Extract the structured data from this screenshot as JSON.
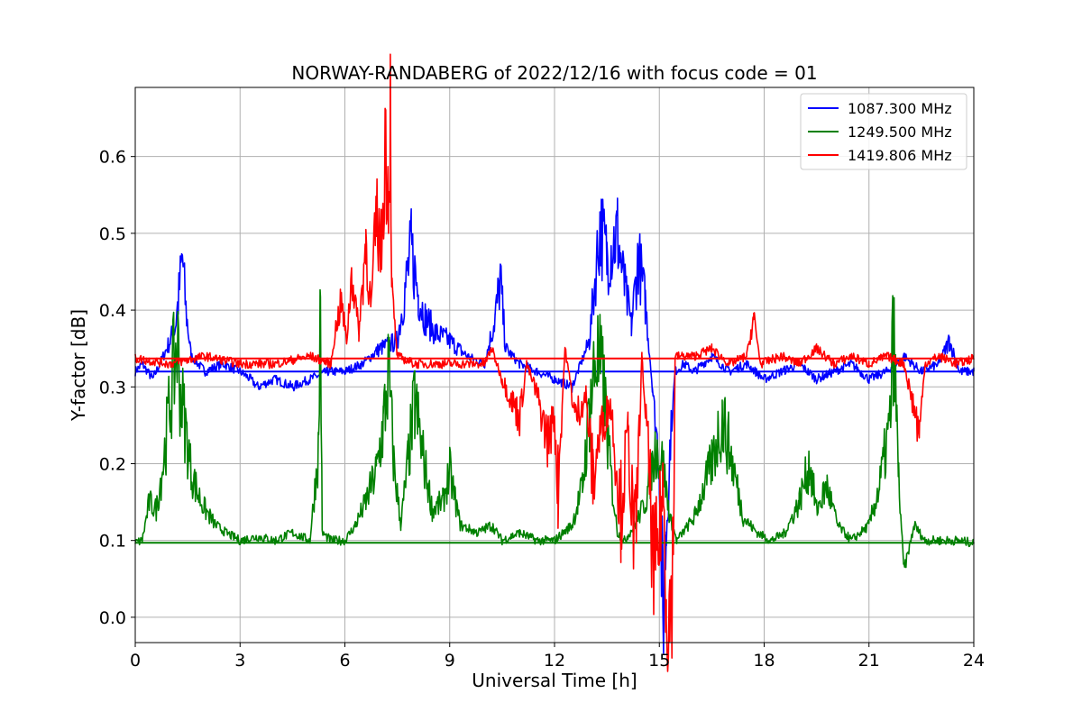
{
  "chart_data": {
    "type": "line",
    "title": "NORWAY-RANDABERG of 2022/12/16 with focus code = 01",
    "xlabel": "Universal Time [h]",
    "ylabel": "Y-factor [dB]",
    "xlim": [
      0,
      24
    ],
    "ylim": [
      -0.033,
      0.69
    ],
    "xticks": [
      0,
      3,
      6,
      9,
      12,
      15,
      18,
      21,
      24
    ],
    "yticks": [
      0.0,
      0.1,
      0.2,
      0.3,
      0.4,
      0.5,
      0.6
    ],
    "ytick_labels": [
      "0.0",
      "0.1",
      "0.2",
      "0.3",
      "0.4",
      "0.5",
      "0.6"
    ],
    "grid": true,
    "legend_position": "top-right",
    "series": [
      {
        "name": "1087.300 MHz",
        "color": "#0000ff",
        "baseline": 0.32,
        "points": [
          [
            0.0,
            0.32
          ],
          [
            0.2,
            0.33
          ],
          [
            0.5,
            0.31
          ],
          [
            0.8,
            0.34
          ],
          [
            1.0,
            0.36
          ],
          [
            1.15,
            0.38
          ],
          [
            1.25,
            0.42
          ],
          [
            1.35,
            0.47
          ],
          [
            1.45,
            0.4
          ],
          [
            1.6,
            0.34
          ],
          [
            2.0,
            0.32
          ],
          [
            2.5,
            0.33
          ],
          [
            3.0,
            0.32
          ],
          [
            3.3,
            0.31
          ],
          [
            3.5,
            0.3
          ],
          [
            4.0,
            0.31
          ],
          [
            4.5,
            0.3
          ],
          [
            5.0,
            0.31
          ],
          [
            5.5,
            0.32
          ],
          [
            6.0,
            0.32
          ],
          [
            6.5,
            0.33
          ],
          [
            7.0,
            0.35
          ],
          [
            7.5,
            0.36
          ],
          [
            7.8,
            0.45
          ],
          [
            7.9,
            0.48
          ],
          [
            8.1,
            0.42
          ],
          [
            8.3,
            0.39
          ],
          [
            8.6,
            0.37
          ],
          [
            9.0,
            0.36
          ],
          [
            9.5,
            0.34
          ],
          [
            10.0,
            0.33
          ],
          [
            10.3,
            0.39
          ],
          [
            10.45,
            0.44
          ],
          [
            10.6,
            0.35
          ],
          [
            11.0,
            0.33
          ],
          [
            11.5,
            0.32
          ],
          [
            12.0,
            0.31
          ],
          [
            12.5,
            0.3
          ],
          [
            13.0,
            0.36
          ],
          [
            13.3,
            0.51
          ],
          [
            13.5,
            0.47
          ],
          [
            13.8,
            0.5
          ],
          [
            14.0,
            0.43
          ],
          [
            14.2,
            0.38
          ],
          [
            14.4,
            0.47
          ],
          [
            14.6,
            0.41
          ],
          [
            14.8,
            0.3
          ],
          [
            15.0,
            0.2
          ],
          [
            15.1,
            0.0
          ],
          [
            15.2,
            0.12
          ],
          [
            15.3,
            0.22
          ],
          [
            15.45,
            0.32
          ],
          [
            15.7,
            0.33
          ],
          [
            16.0,
            0.32
          ],
          [
            16.5,
            0.34
          ],
          [
            17.0,
            0.32
          ],
          [
            17.5,
            0.33
          ],
          [
            18.0,
            0.31
          ],
          [
            18.5,
            0.32
          ],
          [
            19.0,
            0.33
          ],
          [
            19.5,
            0.31
          ],
          [
            20.0,
            0.32
          ],
          [
            20.5,
            0.33
          ],
          [
            21.0,
            0.31
          ],
          [
            21.5,
            0.32
          ],
          [
            22.0,
            0.34
          ],
          [
            22.5,
            0.32
          ],
          [
            23.0,
            0.33
          ],
          [
            23.3,
            0.36
          ],
          [
            23.6,
            0.32
          ],
          [
            24.0,
            0.32
          ]
        ]
      },
      {
        "name": "1249.500 MHz",
        "color": "#008000",
        "baseline": 0.097,
        "points": [
          [
            0.0,
            0.097
          ],
          [
            0.2,
            0.1
          ],
          [
            0.4,
            0.15
          ],
          [
            0.6,
            0.14
          ],
          [
            0.8,
            0.2
          ],
          [
            1.0,
            0.28
          ],
          [
            1.1,
            0.32
          ],
          [
            1.2,
            0.36
          ],
          [
            1.3,
            0.29
          ],
          [
            1.4,
            0.26
          ],
          [
            1.6,
            0.19
          ],
          [
            1.8,
            0.16
          ],
          [
            2.0,
            0.14
          ],
          [
            2.3,
            0.12
          ],
          [
            2.6,
            0.11
          ],
          [
            3.0,
            0.1
          ],
          [
            3.5,
            0.105
          ],
          [
            4.0,
            0.1
          ],
          [
            4.5,
            0.11
          ],
          [
            5.0,
            0.1
          ],
          [
            5.25,
            0.22
          ],
          [
            5.3,
            0.43
          ],
          [
            5.35,
            0.11
          ],
          [
            5.6,
            0.1
          ],
          [
            6.0,
            0.1
          ],
          [
            6.3,
            0.12
          ],
          [
            6.6,
            0.15
          ],
          [
            6.9,
            0.19
          ],
          [
            7.1,
            0.25
          ],
          [
            7.25,
            0.32
          ],
          [
            7.4,
            0.2
          ],
          [
            7.6,
            0.12
          ],
          [
            7.8,
            0.2
          ],
          [
            8.0,
            0.28
          ],
          [
            8.2,
            0.22
          ],
          [
            8.5,
            0.14
          ],
          [
            8.8,
            0.15
          ],
          [
            9.0,
            0.19
          ],
          [
            9.3,
            0.12
          ],
          [
            9.8,
            0.11
          ],
          [
            10.2,
            0.12
          ],
          [
            10.5,
            0.1
          ],
          [
            11.0,
            0.11
          ],
          [
            11.5,
            0.1
          ],
          [
            12.0,
            0.1
          ],
          [
            12.5,
            0.12
          ],
          [
            12.8,
            0.17
          ],
          [
            13.0,
            0.27
          ],
          [
            13.2,
            0.34
          ],
          [
            13.4,
            0.3
          ],
          [
            13.6,
            0.19
          ],
          [
            13.8,
            0.11
          ],
          [
            14.0,
            0.1
          ],
          [
            14.3,
            0.12
          ],
          [
            14.6,
            0.15
          ],
          [
            14.9,
            0.22
          ],
          [
            15.1,
            0.2
          ],
          [
            15.3,
            0.13
          ],
          [
            15.5,
            0.1
          ],
          [
            16.0,
            0.13
          ],
          [
            16.5,
            0.2
          ],
          [
            16.8,
            0.26
          ],
          [
            17.1,
            0.2
          ],
          [
            17.4,
            0.13
          ],
          [
            17.8,
            0.11
          ],
          [
            18.2,
            0.1
          ],
          [
            18.6,
            0.11
          ],
          [
            19.0,
            0.15
          ],
          [
            19.3,
            0.2
          ],
          [
            19.5,
            0.14
          ],
          [
            19.8,
            0.17
          ],
          [
            20.1,
            0.12
          ],
          [
            20.5,
            0.1
          ],
          [
            21.0,
            0.12
          ],
          [
            21.3,
            0.17
          ],
          [
            21.6,
            0.25
          ],
          [
            21.7,
            0.37
          ],
          [
            21.85,
            0.18
          ],
          [
            22.0,
            0.06
          ],
          [
            22.3,
            0.12
          ],
          [
            22.6,
            0.1
          ],
          [
            23.0,
            0.1
          ],
          [
            23.5,
            0.1
          ],
          [
            24.0,
            0.097
          ]
        ]
      },
      {
        "name": "1419.806 MHz",
        "color": "#ff0000",
        "baseline": 0.337,
        "points": [
          [
            0.0,
            0.337
          ],
          [
            1.0,
            0.33
          ],
          [
            2.0,
            0.34
          ],
          [
            3.0,
            0.33
          ],
          [
            4.0,
            0.33
          ],
          [
            5.0,
            0.34
          ],
          [
            5.6,
            0.33
          ],
          [
            5.75,
            0.38
          ],
          [
            5.9,
            0.41
          ],
          [
            6.05,
            0.36
          ],
          [
            6.2,
            0.45
          ],
          [
            6.4,
            0.37
          ],
          [
            6.6,
            0.49
          ],
          [
            6.75,
            0.4
          ],
          [
            6.9,
            0.52
          ],
          [
            7.05,
            0.48
          ],
          [
            7.15,
            0.63
          ],
          [
            7.25,
            0.55
          ],
          [
            7.3,
            0.66
          ],
          [
            7.35,
            0.42
          ],
          [
            7.5,
            0.34
          ],
          [
            8.0,
            0.33
          ],
          [
            9.0,
            0.33
          ],
          [
            10.0,
            0.33
          ],
          [
            10.2,
            0.35
          ],
          [
            10.5,
            0.31
          ],
          [
            10.8,
            0.28
          ],
          [
            11.0,
            0.26
          ],
          [
            11.2,
            0.33
          ],
          [
            11.5,
            0.29
          ],
          [
            11.8,
            0.23
          ],
          [
            12.0,
            0.26
          ],
          [
            12.1,
            0.17
          ],
          [
            12.3,
            0.35
          ],
          [
            12.6,
            0.26
          ],
          [
            12.9,
            0.29
          ],
          [
            13.1,
            0.18
          ],
          [
            13.3,
            0.24
          ],
          [
            13.6,
            0.28
          ],
          [
            13.9,
            0.14
          ],
          [
            14.1,
            0.24
          ],
          [
            14.3,
            0.08
          ],
          [
            14.5,
            0.34
          ],
          [
            14.7,
            0.2
          ],
          [
            14.85,
            0.04
          ],
          [
            15.0,
            0.1
          ],
          [
            15.1,
            0.18
          ],
          [
            15.2,
            0.04
          ],
          [
            15.3,
            0.0
          ],
          [
            15.4,
            0.08
          ],
          [
            15.45,
            0.34
          ],
          [
            16.0,
            0.34
          ],
          [
            16.5,
            0.35
          ],
          [
            17.0,
            0.33
          ],
          [
            17.5,
            0.34
          ],
          [
            17.7,
            0.39
          ],
          [
            17.9,
            0.33
          ],
          [
            18.5,
            0.34
          ],
          [
            19.0,
            0.33
          ],
          [
            19.5,
            0.35
          ],
          [
            20.0,
            0.33
          ],
          [
            20.5,
            0.34
          ],
          [
            21.0,
            0.33
          ],
          [
            21.5,
            0.34
          ],
          [
            22.0,
            0.33
          ],
          [
            22.45,
            0.24
          ],
          [
            22.6,
            0.33
          ],
          [
            23.0,
            0.34
          ],
          [
            23.5,
            0.33
          ],
          [
            24.0,
            0.337
          ]
        ]
      }
    ]
  }
}
